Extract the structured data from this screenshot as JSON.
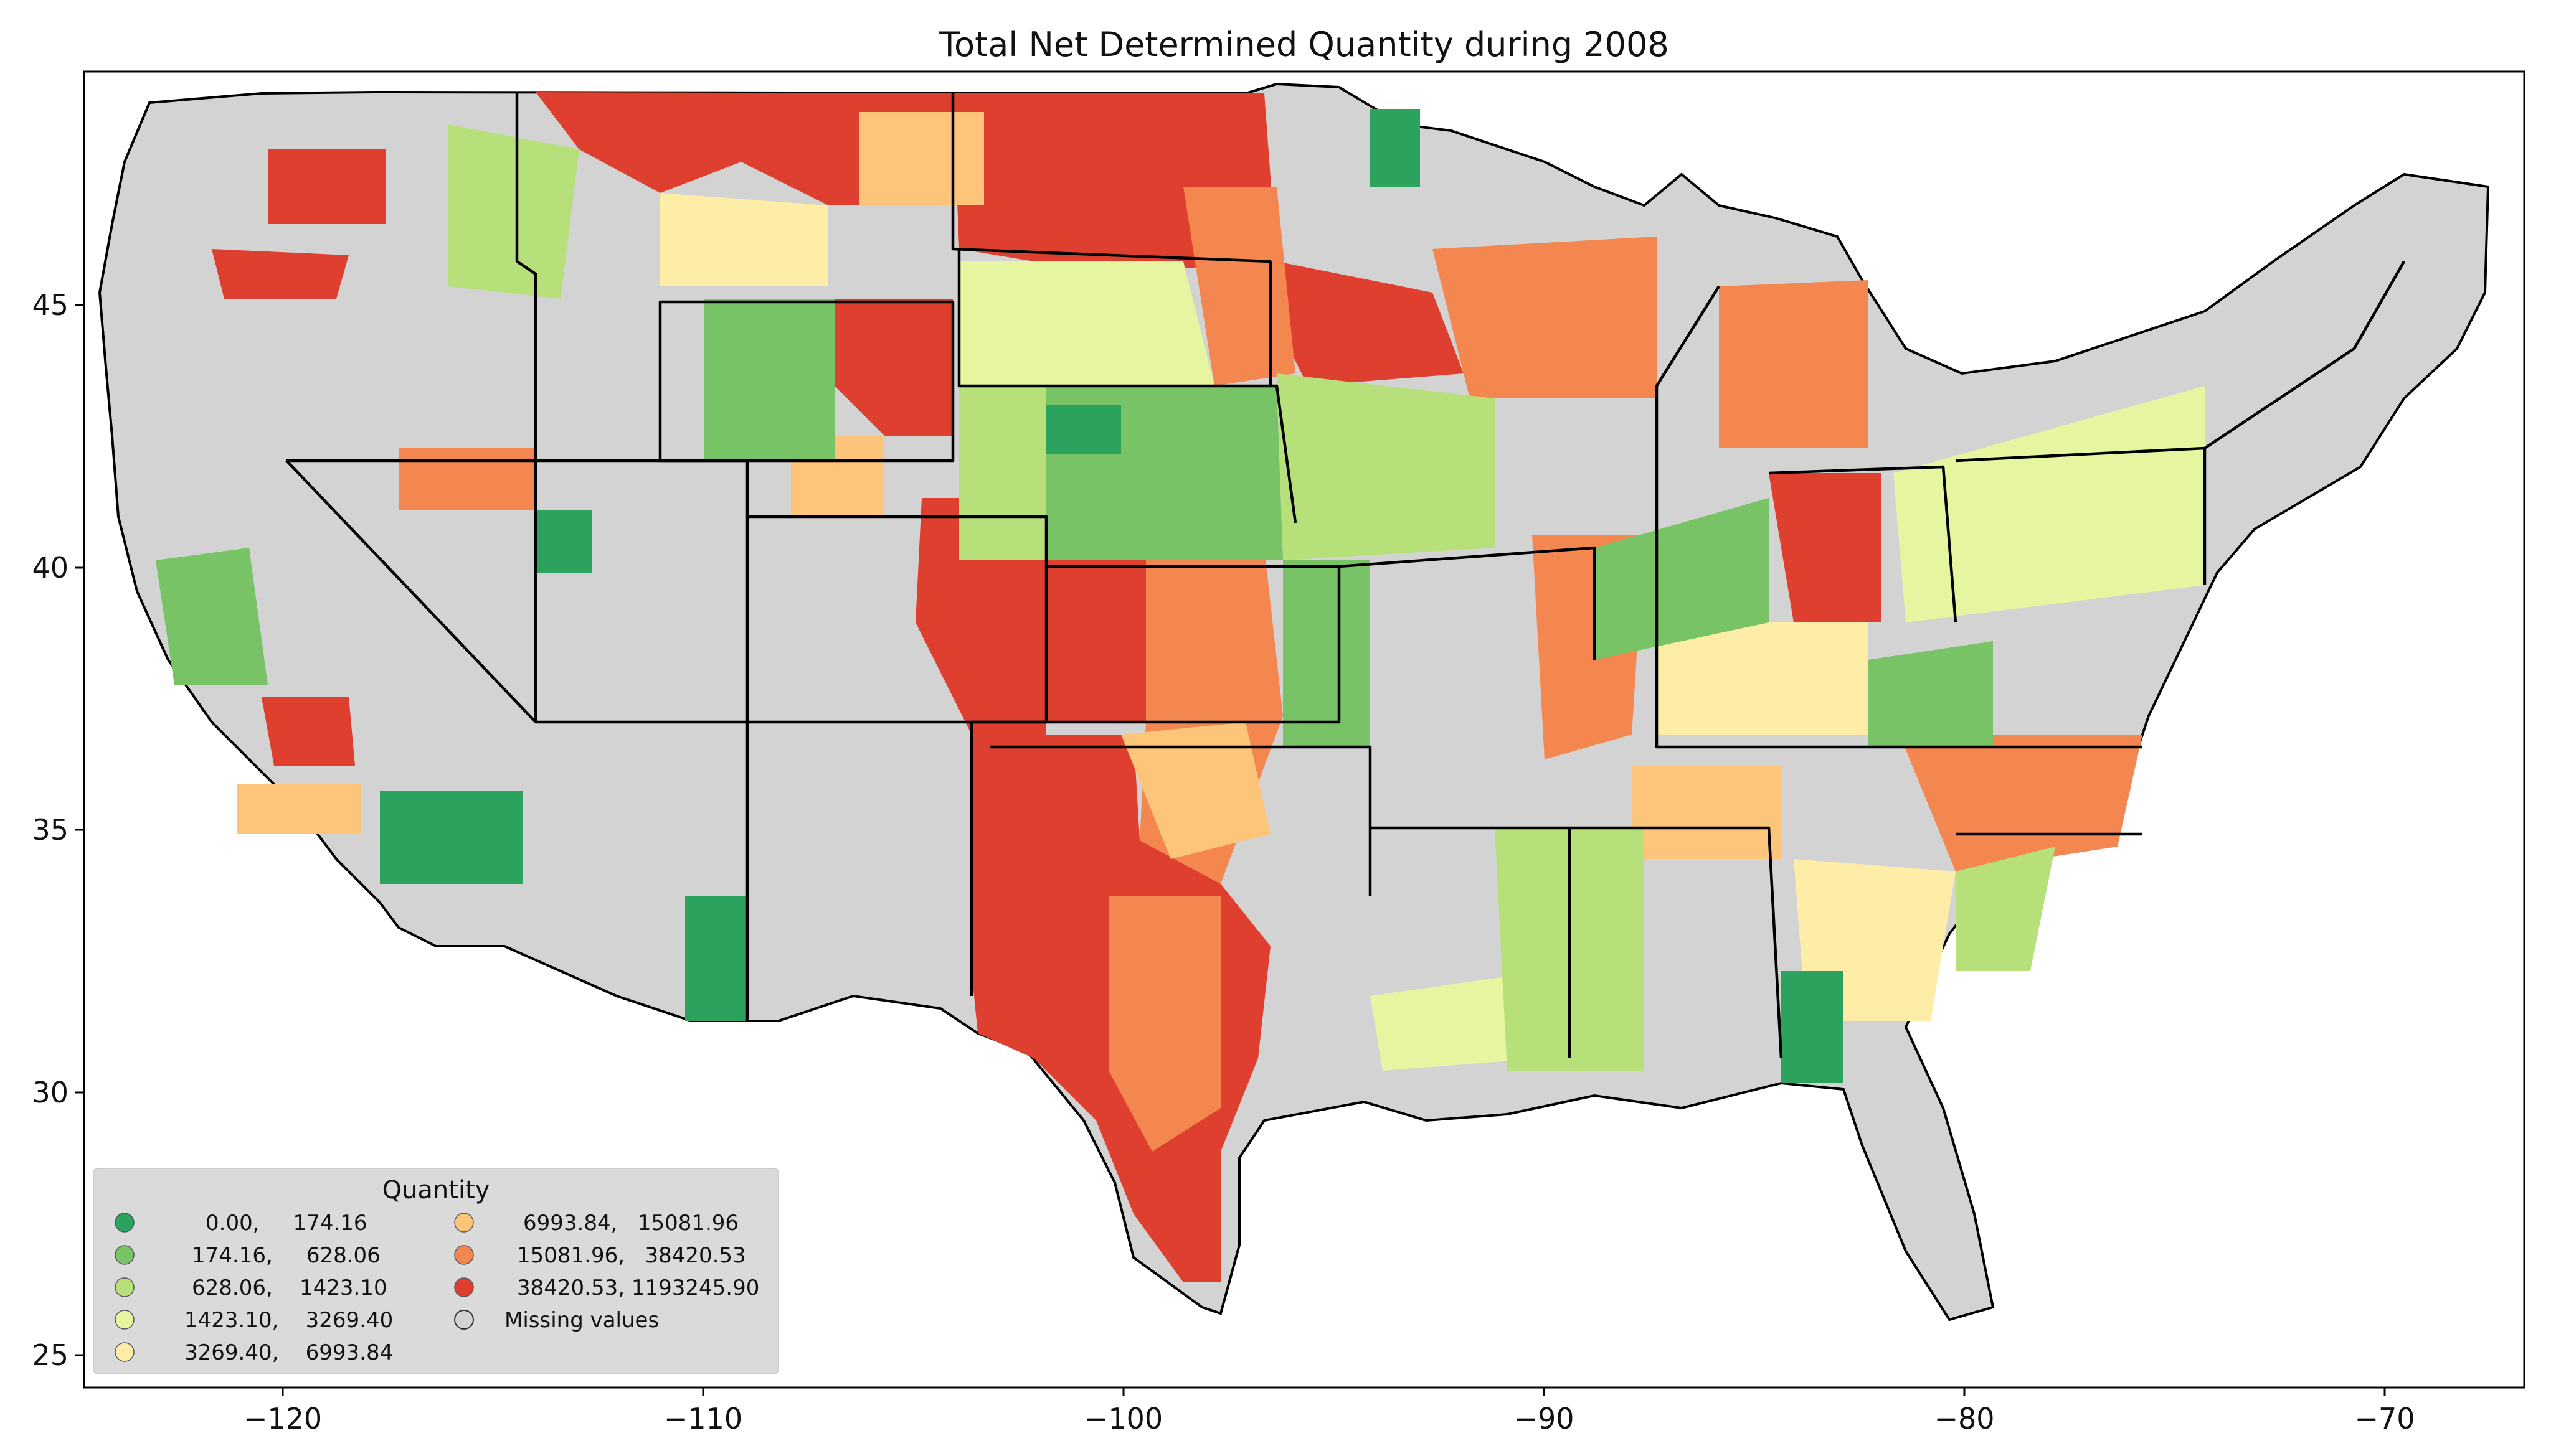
{
  "title": "Total Net Determined Quantity during 2008",
  "x_axis": {
    "ticks": [
      "−120",
      "−110",
      "−100",
      "−90",
      "−80",
      "−70"
    ]
  },
  "y_axis": {
    "ticks": [
      "45",
      "40",
      "35",
      "30",
      "25"
    ]
  },
  "legend": {
    "title": "Quantity",
    "items": [
      {
        "label": "0.00,     174.16",
        "color": "#2ca25f"
      },
      {
        "label": "174.16,     628.06",
        "color": "#78c365"
      },
      {
        "label": "628.06,    1423.10",
        "color": "#b7e07a"
      },
      {
        "label": "1423.10,    3269.40",
        "color": "#e6f5a0"
      },
      {
        "label": "3269.40,    6993.84",
        "color": "#fdeda6"
      },
      {
        "label": "6993.84,   15081.96",
        "color": "#fdc57a"
      },
      {
        "label": "15081.96,   38420.53",
        "color": "#f4874f"
      },
      {
        "label": "38420.53, 1193245.90",
        "color": "#de3f2e"
      },
      {
        "label": "Missing values",
        "color": "#d3d3d3"
      }
    ]
  },
  "colors": {
    "missing": "#d3d3d3",
    "border": "#000000",
    "frame": "#000000"
  }
}
